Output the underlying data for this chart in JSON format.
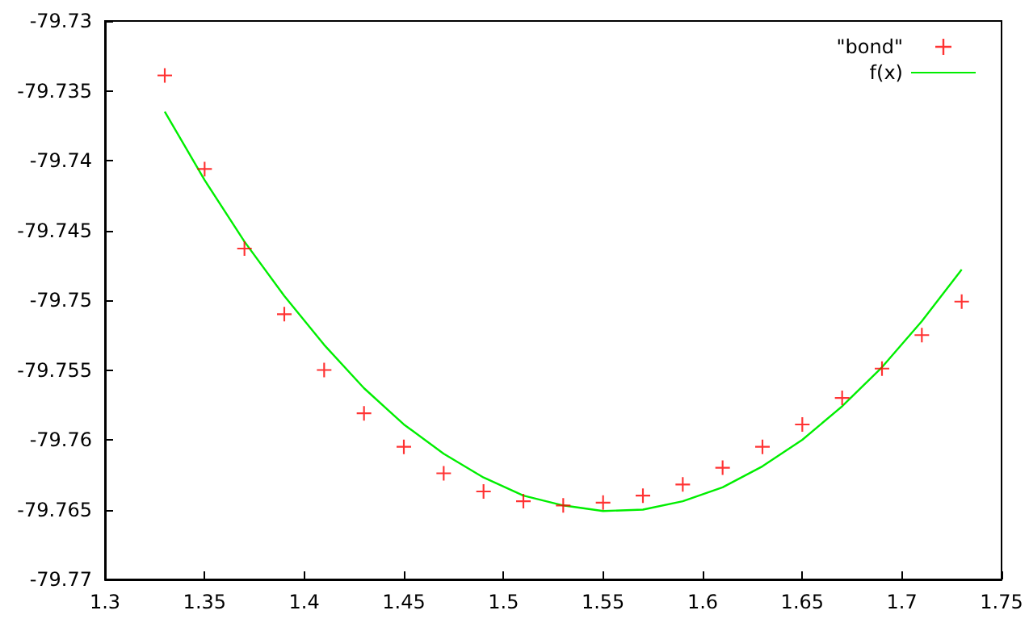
{
  "chart_data": {
    "type": "scatter",
    "marker": "cross",
    "grid": false,
    "legend": "top right",
    "xlim": [
      1.3,
      1.75
    ],
    "xticks": [
      1.3,
      1.35,
      1.4,
      1.45,
      1.5,
      1.55,
      1.6,
      1.65,
      1.7,
      1.75
    ],
    "ylim": [
      -79.77,
      -79.73
    ],
    "yticks": [
      -79.77,
      -79.765,
      -79.76,
      -79.755,
      -79.75,
      -79.745,
      -79.74,
      -79.735,
      -79.73
    ],
    "series": [
      {
        "name": "\"bond\"",
        "color": "#ff0000",
        "x": [
          1.33,
          1.35,
          1.37,
          1.39,
          1.41,
          1.43,
          1.45,
          1.47,
          1.49,
          1.51,
          1.53,
          1.55,
          1.57,
          1.59,
          1.61,
          1.63,
          1.65,
          1.67,
          1.69,
          1.71,
          1.73
        ],
        "values": [
          -79.7339,
          -79.7406,
          -79.7463,
          -79.751,
          -79.755,
          -79.7581,
          -79.7605,
          -79.7624,
          -79.7637,
          -79.7644,
          -79.7647,
          -79.7645,
          -79.764,
          -79.7632,
          -79.762,
          -79.7605,
          -79.7589,
          -79.757,
          -79.7549,
          -79.7525,
          -79.7501
        ]
      },
      {
        "name": "f(x)",
        "type": "line",
        "color": "#00ee00",
        "marker": "none",
        "line_style": "solid",
        "x": [
          1.33,
          1.35,
          1.37,
          1.39,
          1.41,
          1.43,
          1.45,
          1.47,
          1.49,
          1.51,
          1.53,
          1.55,
          1.57,
          1.59,
          1.61,
          1.63,
          1.65,
          1.67,
          1.69,
          1.71,
          1.73
        ],
        "values": [
          -79.7365,
          -79.7414,
          -79.7458,
          -79.7497,
          -79.7532,
          -79.7563,
          -79.7589,
          -79.761,
          -79.7627,
          -79.764,
          -79.7647,
          -79.7651,
          -79.765,
          -79.7644,
          -79.7634,
          -79.7619,
          -79.76,
          -79.7576,
          -79.7548,
          -79.7515,
          -79.7478
        ]
      }
    ]
  }
}
